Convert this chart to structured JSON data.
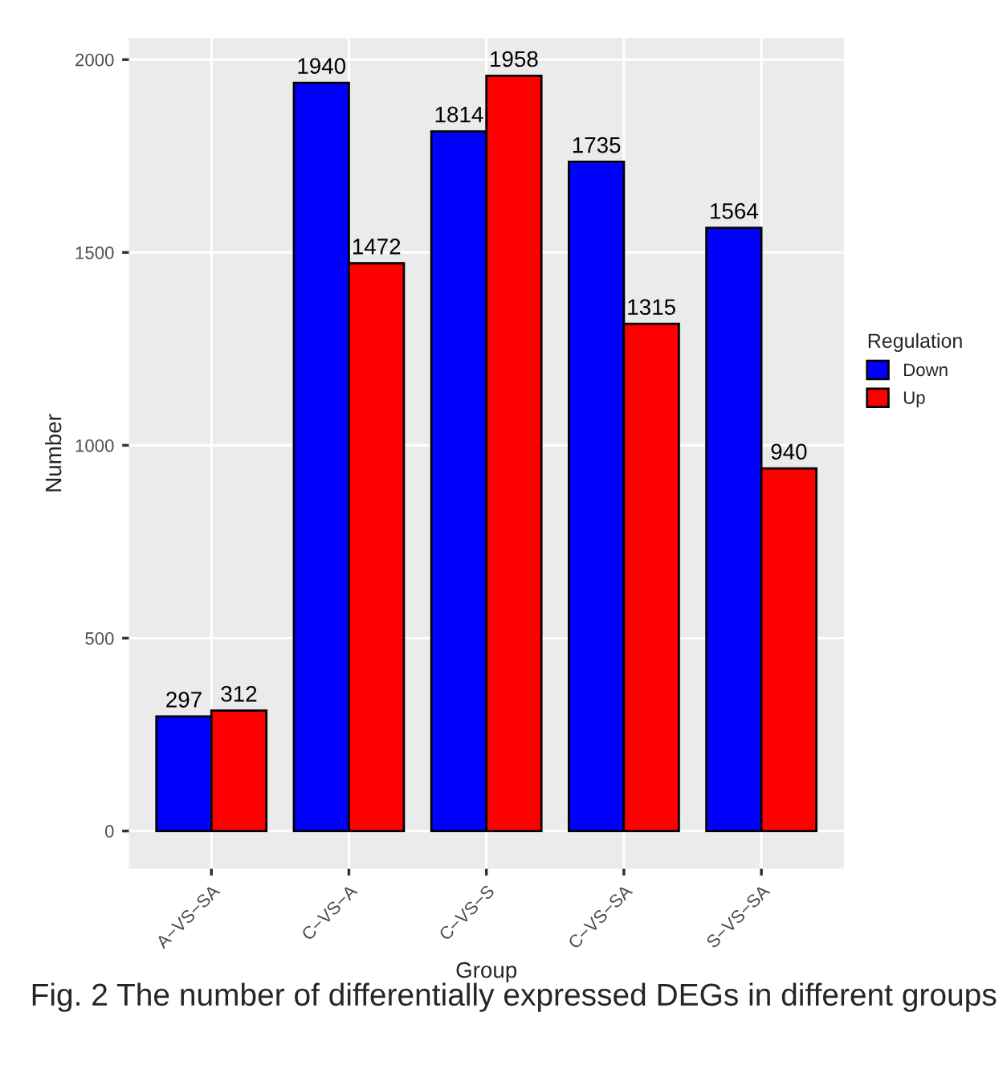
{
  "chart_data": {
    "type": "bar",
    "xlabel": "Group",
    "ylabel": "Number",
    "legend_title": "Regulation",
    "categories": [
      "A−VS−SA",
      "C−VS−A",
      "C−VS−S",
      "C−VS−SA",
      "S−VS−SA"
    ],
    "series": [
      {
        "name": "Down",
        "color": "#0000ff",
        "values": [
          297,
          1940,
          1814,
          1735,
          1564
        ]
      },
      {
        "name": "Up",
        "color": "#ff0000",
        "values": [
          312,
          1472,
          1958,
          1315,
          940
        ]
      }
    ],
    "ylim": [
      -98,
      2056
    ],
    "yticks": [
      0,
      500,
      1000,
      1500,
      2000
    ],
    "grid": true,
    "legend": "right",
    "data_labels": true,
    "annotations": [
      "Fig. 2 The number of differentially expressed DEGs in different groups"
    ]
  }
}
